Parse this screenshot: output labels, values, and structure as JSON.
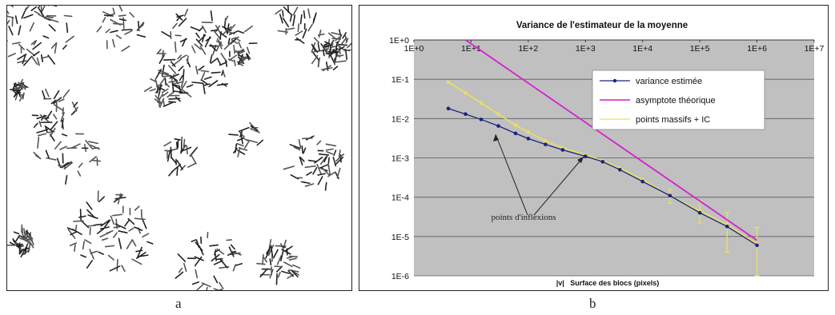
{
  "captions": {
    "a": "a",
    "b": "b"
  },
  "chart_data": {
    "type": "line",
    "title": "Variance de l'estimateur de la moyenne",
    "xlabel": "|v|   Surface des blocs (pixels)",
    "ylabel": "",
    "x_scale": "log",
    "y_scale": "log",
    "xlim": [
      1,
      10000000
    ],
    "ylim": [
      1e-06,
      1
    ],
    "x_tick_labels": [
      "1E+0",
      "1E+1",
      "1E+2",
      "1E+3",
      "1E+4",
      "1E+5",
      "1E+6",
      "1E+7"
    ],
    "y_tick_labels": [
      "1E+0",
      "1E-1",
      "1E-2",
      "1E-3",
      "1E-4",
      "1E-5",
      "1E-6"
    ],
    "grid": true,
    "legend_position": "top-right",
    "annotation": "points d'inflexions",
    "series": [
      {
        "name": "variance estimée",
        "color": "#1a237e",
        "x": [
          4,
          8,
          15,
          30,
          60,
          100,
          200,
          400,
          1000,
          2000,
          4000,
          10000,
          30000,
          100000,
          300000,
          1000000
        ],
        "y": [
          0.018,
          0.013,
          0.0095,
          0.0065,
          0.0042,
          0.0031,
          0.0022,
          0.0016,
          0.0011,
          0.0008,
          0.0005,
          0.00025,
          0.00011,
          4e-05,
          1.8e-05,
          6e-06
        ]
      },
      {
        "name": "asymptote théorique",
        "color": "#d61fd0",
        "x": [
          8,
          1000000
        ],
        "y": [
          1.0,
          8e-06
        ]
      },
      {
        "name": "points massifs + IC",
        "color": "#e8e060",
        "x": [
          4,
          8,
          15,
          30,
          60,
          100,
          200,
          400,
          1000,
          2000,
          4000,
          10000,
          30000,
          100000,
          300000,
          1000000
        ],
        "y": [
          0.085,
          0.045,
          0.025,
          0.013,
          0.0068,
          0.0045,
          0.0027,
          0.0018,
          0.0012,
          0.00085,
          0.00055,
          0.00028,
          0.00011,
          4.5e-05,
          2e-05,
          6.5e-06
        ],
        "ci_low": [
          null,
          null,
          null,
          null,
          null,
          null,
          null,
          null,
          null,
          null,
          null,
          null,
          7e-05,
          2.2e-05,
          4e-06,
          1e-06
        ],
        "ci_high": [
          null,
          null,
          null,
          null,
          null,
          null,
          null,
          null,
          null,
          null,
          null,
          null,
          0.00016,
          8e-05,
          4e-05,
          1.7e-05
        ]
      }
    ]
  }
}
